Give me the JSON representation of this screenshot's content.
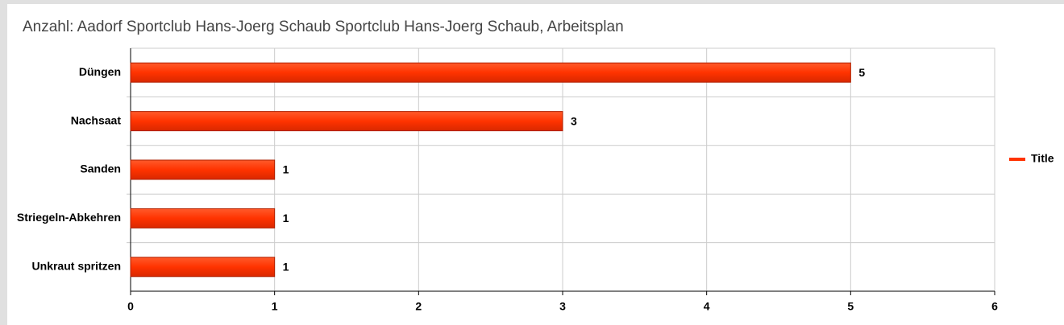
{
  "chart_data": {
    "type": "bar",
    "orientation": "horizontal",
    "title": "Anzahl: Aadorf Sportclub Hans-Joerg Schaub Sportclub Hans-Joerg Schaub, Arbeitsplan",
    "categories": [
      "Düngen",
      "Nachsaat",
      "Sanden",
      "Striegeln-Abkehren",
      "Unkraut spritzen"
    ],
    "series": [
      {
        "name": "Title",
        "color": "#ff3300",
        "values": [
          5,
          3,
          1,
          1,
          1
        ]
      }
    ],
    "xlim": [
      0,
      6
    ],
    "xticks": [
      0,
      1,
      2,
      3,
      4,
      5,
      6
    ],
    "grid": true,
    "legend": "right"
  }
}
